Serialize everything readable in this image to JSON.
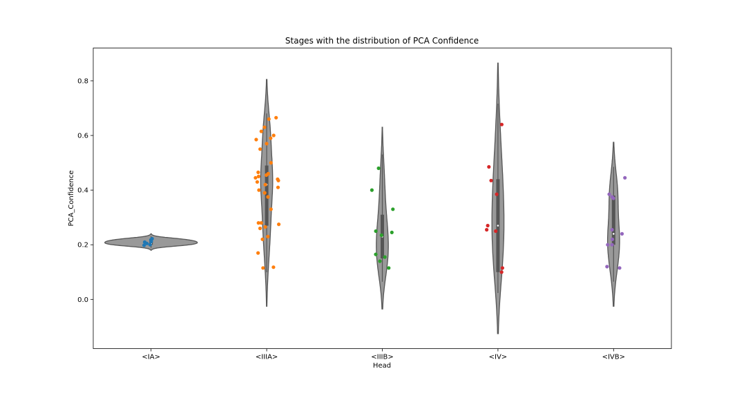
{
  "chart_data": {
    "type": "violin",
    "title": "Stages with the distribution of PCA Confidence",
    "xlabel": "Head",
    "ylabel": "PCA_Confidence",
    "categories": [
      "<IA>",
      "<IIIA>",
      "<IIIB>",
      "<IV>",
      "<IVB>"
    ],
    "ylim": [
      -0.18,
      0.92
    ],
    "yticks": [
      0.0,
      0.2,
      0.4,
      0.6,
      0.8
    ],
    "ytick_labels": [
      "0.0",
      "0.2",
      "0.4",
      "0.6",
      "0.8"
    ],
    "grid": false,
    "legend": "none",
    "violin_color": "#999999",
    "violin_edge_color": "#555555",
    "box_color": "#555555",
    "series": [
      {
        "category": "<IA>",
        "color": "#1f77b4",
        "violin_range": [
          0.18,
          0.24
        ],
        "quartiles": [
          0.2,
          0.205,
          0.215
        ],
        "points": [
          0.218,
          0.222,
          0.21,
          0.205,
          0.2,
          0.212,
          0.198
        ]
      },
      {
        "category": "<IIIA>",
        "color": "#ff7f0e",
        "violin_range": [
          -0.025,
          0.805
        ],
        "quartiles": [
          0.27,
          0.42,
          0.49
        ],
        "points": [
          0.665,
          0.66,
          0.63,
          0.615,
          0.6,
          0.59,
          0.585,
          0.57,
          0.55,
          0.5,
          0.465,
          0.46,
          0.455,
          0.45,
          0.445,
          0.44,
          0.435,
          0.43,
          0.42,
          0.41,
          0.4,
          0.39,
          0.375,
          0.33,
          0.28,
          0.28,
          0.275,
          0.265,
          0.26,
          0.23,
          0.22,
          0.17,
          0.118,
          0.115
        ]
      },
      {
        "category": "<IIIB>",
        "color": "#2ca02c",
        "violin_range": [
          -0.035,
          0.63
        ],
        "quartiles": [
          0.15,
          0.23,
          0.31
        ],
        "points": [
          0.48,
          0.4,
          0.33,
          0.25,
          0.245,
          0.235,
          0.165,
          0.155,
          0.14,
          0.115
        ]
      },
      {
        "category": "<IV>",
        "color": "#d62728",
        "violin_range": [
          -0.125,
          0.865
        ],
        "quartiles": [
          0.1,
          0.27,
          0.44
        ],
        "points": [
          0.64,
          0.485,
          0.435,
          0.385,
          0.27,
          0.255,
          0.25,
          0.115,
          0.1
        ]
      },
      {
        "category": "<IVB>",
        "color": "#9467bd",
        "violin_range": [
          -0.025,
          0.575
        ],
        "quartiles": [
          0.2,
          0.24,
          0.38
        ],
        "points": [
          0.445,
          0.385,
          0.375,
          0.37,
          0.255,
          0.24,
          0.22,
          0.2,
          0.2,
          0.12,
          0.115
        ]
      }
    ]
  }
}
